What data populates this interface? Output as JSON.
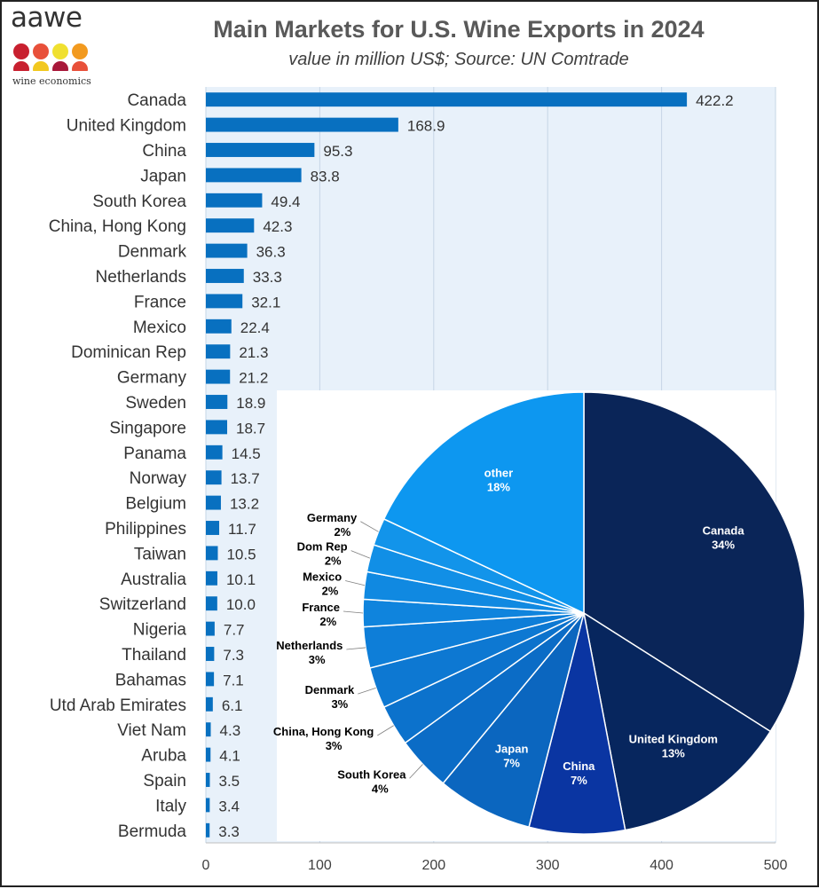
{
  "header": {
    "title": "Main Markets for U.S. Wine Exports in 2024",
    "subtitle": "value in million US$; Source: UN Comtrade"
  },
  "logo": {
    "word": "aawe",
    "tagline": "wine economics",
    "dot_colors": [
      "#c8202f",
      "#e8503a",
      "#f0e030",
      "#f29a1f",
      "#c8202f",
      "#f2c81f",
      "#a8183a",
      "#e8503a"
    ]
  },
  "colors": {
    "bar": "#0870c0",
    "plot_bg": "#e8f1fa",
    "grid": "#c6d6e6"
  },
  "chart_data": [
    {
      "type": "bar",
      "orientation": "horizontal",
      "categories": [
        "Canada",
        "United Kingdom",
        "China",
        "Japan",
        "South Korea",
        "China, Hong Kong",
        "Denmark",
        "Netherlands",
        "France",
        "Mexico",
        "Dominican Rep",
        "Germany",
        "Sweden",
        "Singapore",
        "Panama",
        "Norway",
        "Belgium",
        "Philippines",
        "Taiwan",
        "Australia",
        "Switzerland",
        "Nigeria",
        "Thailand",
        "Bahamas",
        "Utd Arab Emirates",
        "Viet Nam",
        "Aruba",
        "Spain",
        "Italy",
        "Bermuda"
      ],
      "values": [
        422.2,
        168.9,
        95.3,
        83.8,
        49.4,
        42.3,
        36.3,
        33.3,
        32.1,
        22.4,
        21.3,
        21.2,
        18.9,
        18.7,
        14.5,
        13.7,
        13.2,
        11.7,
        10.5,
        10.1,
        10.0,
        7.7,
        7.3,
        7.1,
        6.1,
        4.3,
        4.1,
        3.5,
        3.4,
        3.3
      ],
      "value_labels": [
        "422.2",
        "168.9",
        "95.3",
        "83.8",
        "49.4",
        "42.3",
        "36.3",
        "33.3",
        "32.1",
        "22.4",
        "21.3",
        "21.2",
        "18.9",
        "18.7",
        "14.5",
        "13.7",
        "13.2",
        "11.7",
        "10.5",
        "10.1",
        "10.0",
        "7.7",
        "7.3",
        "7.1",
        "6.1",
        "4.3",
        "4.1",
        "3.5",
        "3.4",
        "3.3"
      ],
      "xlim": [
        0,
        500
      ],
      "x_ticks": [
        "0",
        "100",
        "200",
        "300",
        "400",
        "500"
      ],
      "grid": true
    },
    {
      "type": "pie",
      "slices": [
        {
          "label": "Canada",
          "pct": 34,
          "pct_label": "34%",
          "color": "#0a2558"
        },
        {
          "label": "United Kingdom",
          "pct": 13,
          "pct_label": "13%",
          "color": "#07265e"
        },
        {
          "label": "China",
          "pct": 7,
          "pct_label": "7%",
          "color": "#0a35a2"
        },
        {
          "label": "Japan",
          "pct": 7,
          "pct_label": "7%",
          "color": "#0b66bf"
        },
        {
          "label": "South Korea",
          "pct": 4,
          "pct_label": "4%",
          "color": "#0b6cc6"
        },
        {
          "label": "China, Hong Kong",
          "pct": 3,
          "pct_label": "3%",
          "color": "#0c72cc"
        },
        {
          "label": "Denmark",
          "pct": 3,
          "pct_label": "3%",
          "color": "#0d78d2"
        },
        {
          "label": "Netherlands",
          "pct": 3,
          "pct_label": "3%",
          "color": "#0e7ed8"
        },
        {
          "label": "France",
          "pct": 2,
          "pct_label": "2%",
          "color": "#0f84dd"
        },
        {
          "label": "Mexico",
          "pct": 2,
          "pct_label": "2%",
          "color": "#1089e1"
        },
        {
          "label": "Dom Rep",
          "pct": 2,
          "pct_label": "2%",
          "color": "#118fe6"
        },
        {
          "label": "Germany",
          "pct": 2,
          "pct_label": "2%",
          "color": "#1294ea"
        },
        {
          "label": "other",
          "pct": 18,
          "pct_label": "18%",
          "color": "#0d97f0"
        }
      ]
    }
  ]
}
